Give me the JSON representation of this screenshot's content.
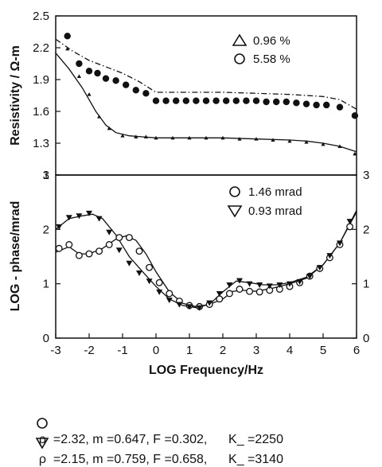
{
  "chart_data": [
    {
      "type": "scatter",
      "panel": "top",
      "ylabel": "Resistivity / Ω-m",
      "ylim": [
        1,
        2.5
      ],
      "yticks": [
        "1",
        "1.3",
        "1.6",
        "1.9",
        "2.2",
        "2.5"
      ],
      "xlim": [
        -3,
        6
      ],
      "legend": {
        "placement": "top-right",
        "entries": [
          {
            "symbol": "triangle-up",
            "label": "0.96 %"
          },
          {
            "symbol": "circle",
            "label": "5.58 %"
          }
        ]
      },
      "series": [
        {
          "symbol": "circle-filled",
          "x": [
            -2.65,
            -2.3,
            -2.0,
            -1.75,
            -1.5,
            -1.2,
            -0.9,
            -0.6,
            -0.3,
            0.0,
            0.3,
            0.6,
            0.9,
            1.2,
            1.5,
            1.8,
            2.1,
            2.4,
            2.7,
            3.0,
            3.3,
            3.6,
            3.9,
            4.2,
            4.5,
            4.8,
            5.1,
            5.5,
            5.95
          ],
          "y": [
            2.31,
            2.05,
            1.98,
            1.96,
            1.91,
            1.89,
            1.85,
            1.8,
            1.77,
            1.7,
            1.7,
            1.7,
            1.7,
            1.7,
            1.7,
            1.7,
            1.7,
            1.7,
            1.7,
            1.7,
            1.69,
            1.69,
            1.69,
            1.68,
            1.67,
            1.66,
            1.66,
            1.64,
            1.56
          ]
        },
        {
          "symbol": "triangle-small",
          "x": [
            -2.65,
            -2.3,
            -2.0,
            -1.7,
            -1.4,
            -1.0,
            -0.6,
            -0.3,
            0.0,
            0.5,
            1.0,
            1.5,
            2.0,
            2.5,
            3.0,
            3.5,
            4.0,
            4.5,
            5.0,
            5.5,
            5.95
          ],
          "y": [
            2.19,
            1.93,
            1.76,
            1.55,
            1.44,
            1.37,
            1.36,
            1.36,
            1.35,
            1.35,
            1.35,
            1.35,
            1.35,
            1.34,
            1.34,
            1.33,
            1.32,
            1.31,
            1.29,
            1.27,
            1.2
          ]
        }
      ],
      "fit_lines": [
        {
          "style": "dashed",
          "x": [
            -3,
            -2.5,
            -2.0,
            -1.5,
            -1.0,
            -0.5,
            -0.2,
            0.0,
            1.0,
            2.0,
            3.0,
            4.0,
            5.0,
            5.5,
            6.0
          ],
          "y": [
            2.28,
            2.17,
            2.08,
            2.02,
            1.96,
            1.88,
            1.82,
            1.78,
            1.78,
            1.78,
            1.77,
            1.76,
            1.74,
            1.71,
            1.62
          ]
        },
        {
          "style": "solid",
          "x": [
            -3,
            -2.6,
            -2.2,
            -1.8,
            -1.5,
            -1.2,
            -0.8,
            -0.4,
            0.0,
            1.0,
            2.0,
            3.0,
            4.0,
            4.5,
            5.0,
            5.5,
            6.0
          ],
          "y": [
            2.15,
            2.0,
            1.82,
            1.6,
            1.47,
            1.4,
            1.37,
            1.36,
            1.35,
            1.35,
            1.35,
            1.34,
            1.33,
            1.32,
            1.3,
            1.27,
            1.22
          ]
        }
      ]
    },
    {
      "type": "scatter",
      "panel": "bottom",
      "ylabel": "LOG - phase/mrad",
      "xlabel": "LOG Frequency/Hz",
      "ylim": [
        0,
        3
      ],
      "yticks": [
        "0",
        "1",
        "2",
        "3"
      ],
      "xlim": [
        -3,
        6
      ],
      "xticks": [
        "-3",
        "-2",
        "-1",
        "0",
        "1",
        "2",
        "3",
        "4",
        "5",
        "6"
      ],
      "legend": {
        "placement": "top-right",
        "entries": [
          {
            "symbol": "circle",
            "label": "1.46 mrad"
          },
          {
            "symbol": "triangle-down",
            "label": "0.93 mrad"
          }
        ]
      },
      "series": [
        {
          "symbol": "circle-open",
          "x": [
            -2.9,
            -2.6,
            -2.3,
            -2.0,
            -1.7,
            -1.4,
            -1.1,
            -0.8,
            -0.5,
            -0.2,
            0.1,
            0.4,
            0.7,
            1.0,
            1.3,
            1.6,
            1.9,
            2.2,
            2.5,
            2.8,
            3.1,
            3.4,
            3.7,
            4.0,
            4.3,
            4.6,
            4.9,
            5.2,
            5.5,
            5.8
          ],
          "y": [
            1.65,
            1.72,
            1.52,
            1.55,
            1.6,
            1.72,
            1.85,
            1.85,
            1.6,
            1.3,
            1.02,
            0.82,
            0.68,
            0.6,
            0.58,
            0.62,
            0.72,
            0.82,
            0.9,
            0.86,
            0.85,
            0.88,
            0.9,
            0.95,
            1.02,
            1.14,
            1.28,
            1.48,
            1.72,
            2.05
          ]
        },
        {
          "symbol": "triangle-down",
          "x": [
            -2.9,
            -2.6,
            -2.3,
            -2.0,
            -1.7,
            -1.4,
            -1.1,
            -0.8,
            -0.5,
            -0.2,
            0.1,
            0.4,
            0.7,
            1.0,
            1.3,
            1.6,
            1.9,
            2.2,
            2.5,
            2.8,
            3.1,
            3.4,
            3.7,
            4.0,
            4.3,
            4.6,
            4.9,
            5.2,
            5.5,
            5.8
          ],
          "y": [
            2.05,
            2.22,
            2.25,
            2.3,
            2.2,
            1.95,
            1.62,
            1.38,
            1.2,
            1.05,
            0.85,
            0.7,
            0.62,
            0.58,
            0.56,
            0.65,
            0.82,
            0.98,
            1.06,
            1.0,
            0.98,
            0.96,
            0.98,
            1.0,
            1.04,
            1.14,
            1.3,
            1.52,
            1.75,
            2.15
          ]
        }
      ],
      "fit_lines": [
        {
          "style": "solid",
          "x": [
            -3,
            -2.6,
            -2.3,
            -2.0,
            -1.6,
            -1.2,
            -0.9,
            -0.6,
            -0.3,
            0.0,
            0.4,
            0.8,
            1.2,
            1.6,
            2.0,
            2.3,
            2.6,
            3.0,
            3.5,
            4.0,
            4.5,
            5.0,
            5.5,
            6.0
          ],
          "y": [
            1.58,
            1.68,
            1.55,
            1.55,
            1.65,
            1.82,
            1.88,
            1.8,
            1.55,
            1.22,
            0.85,
            0.64,
            0.58,
            0.62,
            0.72,
            0.86,
            0.88,
            0.86,
            0.92,
            1.0,
            1.1,
            1.35,
            1.75,
            2.35
          ]
        },
        {
          "style": "solid",
          "x": [
            -3,
            -2.6,
            -2.2,
            -1.9,
            -1.6,
            -1.2,
            -0.8,
            -0.4,
            0.0,
            0.4,
            0.8,
            1.2,
            1.6,
            2.0,
            2.4,
            2.8,
            3.2,
            3.6,
            4.0,
            4.5,
            5.0,
            5.5,
            6.0
          ],
          "y": [
            2.0,
            2.2,
            2.25,
            2.28,
            2.2,
            1.9,
            1.5,
            1.22,
            0.95,
            0.72,
            0.6,
            0.56,
            0.62,
            0.85,
            1.05,
            1.02,
            0.98,
            0.98,
            1.02,
            1.12,
            1.35,
            1.75,
            2.32
          ]
        }
      ]
    }
  ],
  "footer": {
    "row1": {
      "symbol": "circle",
      "text": "ρ  =2.32, m =0.647, F =0.302,      K_ =2250"
    },
    "row2": {
      "symbol": "triangle-down",
      "text": "ρ  =2.15, m =0.759, F =0.658,      K_ =3140"
    }
  }
}
